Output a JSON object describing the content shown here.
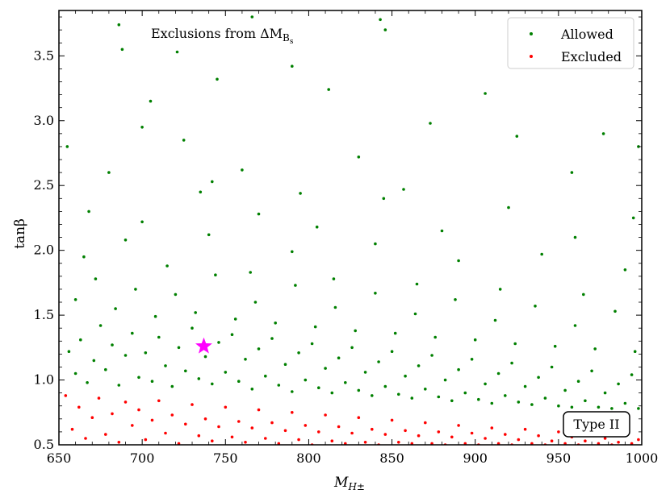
{
  "chart_data": {
    "type": "scatter",
    "title": "Exclusions from ΔM",
    "title_sub": "B",
    "title_subsub": "s",
    "xlabel": "M",
    "xlabel_sub": "H±",
    "ylabel": "tanβ",
    "xlim": [
      650,
      1000
    ],
    "ylim": [
      0.5,
      3.85
    ],
    "x_ticks": [
      650,
      700,
      750,
      800,
      850,
      900,
      950,
      1000
    ],
    "x_tick_labels": [
      "650",
      "700",
      "750",
      "800",
      "850",
      "900",
      "950",
      "1000"
    ],
    "y_ticks": [
      0.5,
      1.0,
      1.5,
      2.0,
      2.5,
      3.0,
      3.5
    ],
    "y_tick_labels": [
      "0.5",
      "1.0",
      "1.5",
      "2.0",
      "2.5",
      "3.0",
      "3.5"
    ],
    "grid": false,
    "legend_position": "top-right",
    "annotation_box": "Type II",
    "series": [
      {
        "name": "Allowed",
        "color": "#008000",
        "points": [
          [
            656,
            1.22
          ],
          [
            660,
            1.05
          ],
          [
            663,
            1.31
          ],
          [
            667,
            0.98
          ],
          [
            671,
            1.15
          ],
          [
            675,
            1.42
          ],
          [
            678,
            1.08
          ],
          [
            682,
            1.27
          ],
          [
            686,
            0.96
          ],
          [
            690,
            1.19
          ],
          [
            694,
            1.36
          ],
          [
            698,
            1.02
          ],
          [
            702,
            1.21
          ],
          [
            706,
            0.99
          ],
          [
            710,
            1.33
          ],
          [
            714,
            1.11
          ],
          [
            718,
            0.95
          ],
          [
            722,
            1.25
          ],
          [
            726,
            1.07
          ],
          [
            730,
            1.4
          ],
          [
            734,
            1.01
          ],
          [
            738,
            1.18
          ],
          [
            742,
            0.97
          ],
          [
            746,
            1.29
          ],
          [
            750,
            1.06
          ],
          [
            754,
            1.35
          ],
          [
            758,
            0.99
          ],
          [
            762,
            1.16
          ],
          [
            766,
            0.93
          ],
          [
            770,
            1.24
          ],
          [
            774,
            1.03
          ],
          [
            778,
            1.32
          ],
          [
            782,
            0.96
          ],
          [
            786,
            1.12
          ],
          [
            790,
            0.91
          ],
          [
            794,
            1.21
          ],
          [
            798,
            1.0
          ],
          [
            802,
            1.28
          ],
          [
            806,
            0.94
          ],
          [
            810,
            1.09
          ],
          [
            814,
            0.9
          ],
          [
            818,
            1.17
          ],
          [
            822,
            0.98
          ],
          [
            826,
            1.25
          ],
          [
            830,
            0.92
          ],
          [
            834,
            1.06
          ],
          [
            838,
            0.88
          ],
          [
            842,
            1.14
          ],
          [
            846,
            0.95
          ],
          [
            850,
            1.22
          ],
          [
            854,
            0.89
          ],
          [
            858,
            1.03
          ],
          [
            862,
            0.86
          ],
          [
            866,
            1.11
          ],
          [
            870,
            0.93
          ],
          [
            874,
            1.19
          ],
          [
            878,
            0.87
          ],
          [
            882,
            1.0
          ],
          [
            886,
            0.84
          ],
          [
            890,
            1.08
          ],
          [
            894,
            0.9
          ],
          [
            898,
            1.16
          ],
          [
            902,
            0.85
          ],
          [
            906,
            0.97
          ],
          [
            910,
            0.82
          ],
          [
            914,
            1.05
          ],
          [
            918,
            0.88
          ],
          [
            922,
            1.13
          ],
          [
            926,
            0.83
          ],
          [
            930,
            0.95
          ],
          [
            934,
            0.81
          ],
          [
            938,
            1.02
          ],
          [
            942,
            0.86
          ],
          [
            946,
            1.1
          ],
          [
            950,
            0.8
          ],
          [
            954,
            0.92
          ],
          [
            958,
            0.79
          ],
          [
            962,
            0.99
          ],
          [
            966,
            0.84
          ],
          [
            970,
            1.07
          ],
          [
            974,
            0.79
          ],
          [
            978,
            0.9
          ],
          [
            982,
            0.78
          ],
          [
            986,
            0.97
          ],
          [
            990,
            0.82
          ],
          [
            994,
            1.04
          ],
          [
            998,
            0.78
          ],
          [
            660,
            1.62
          ],
          [
            672,
            1.78
          ],
          [
            684,
            1.55
          ],
          [
            696,
            1.7
          ],
          [
            708,
            1.49
          ],
          [
            720,
            1.66
          ],
          [
            732,
            1.52
          ],
          [
            744,
            1.81
          ],
          [
            756,
            1.47
          ],
          [
            768,
            1.6
          ],
          [
            780,
            1.44
          ],
          [
            792,
            1.73
          ],
          [
            804,
            1.41
          ],
          [
            816,
            1.56
          ],
          [
            828,
            1.38
          ],
          [
            840,
            1.67
          ],
          [
            852,
            1.36
          ],
          [
            864,
            1.51
          ],
          [
            876,
            1.33
          ],
          [
            888,
            1.62
          ],
          [
            900,
            1.31
          ],
          [
            912,
            1.46
          ],
          [
            924,
            1.28
          ],
          [
            936,
            1.57
          ],
          [
            948,
            1.26
          ],
          [
            960,
            1.42
          ],
          [
            972,
            1.24
          ],
          [
            984,
            1.53
          ],
          [
            996,
            1.22
          ],
          [
            665,
            1.95
          ],
          [
            690,
            2.08
          ],
          [
            715,
            1.88
          ],
          [
            740,
            2.12
          ],
          [
            765,
            1.83
          ],
          [
            790,
            1.99
          ],
          [
            815,
            1.78
          ],
          [
            840,
            2.05
          ],
          [
            865,
            1.74
          ],
          [
            890,
            1.92
          ],
          [
            915,
            1.7
          ],
          [
            940,
            1.97
          ],
          [
            965,
            1.66
          ],
          [
            990,
            1.85
          ],
          [
            668,
            2.3
          ],
          [
            700,
            2.22
          ],
          [
            735,
            2.45
          ],
          [
            770,
            2.28
          ],
          [
            805,
            2.18
          ],
          [
            845,
            2.4
          ],
          [
            880,
            2.15
          ],
          [
            920,
            2.33
          ],
          [
            960,
            2.1
          ],
          [
            995,
            2.25
          ],
          [
            655,
            2.8
          ],
          [
            686,
            3.74
          ],
          [
            688,
            3.55
          ],
          [
            705,
            3.15
          ],
          [
            721,
            3.53
          ],
          [
            745,
            3.32
          ],
          [
            766,
            3.8
          ],
          [
            790,
            3.42
          ],
          [
            812,
            3.24
          ],
          [
            843,
            3.78
          ],
          [
            846,
            3.7
          ],
          [
            873,
            2.98
          ],
          [
            906,
            3.21
          ],
          [
            925,
            2.88
          ],
          [
            958,
            2.6
          ],
          [
            977,
            2.9
          ],
          [
            998,
            2.8
          ],
          [
            700,
            2.95
          ],
          [
            760,
            2.62
          ],
          [
            830,
            2.72
          ],
          [
            857,
            2.47
          ],
          [
            742,
            2.53
          ],
          [
            795,
            2.44
          ],
          [
            680,
            2.6
          ],
          [
            725,
            2.85
          ]
        ]
      },
      {
        "name": "Excluded",
        "color": "#ff0000",
        "points": [
          [
            654,
            0.88
          ],
          [
            658,
            0.62
          ],
          [
            662,
            0.79
          ],
          [
            666,
            0.55
          ],
          [
            670,
            0.71
          ],
          [
            674,
            0.86
          ],
          [
            678,
            0.58
          ],
          [
            682,
            0.74
          ],
          [
            686,
            0.52
          ],
          [
            690,
            0.83
          ],
          [
            694,
            0.65
          ],
          [
            698,
            0.77
          ],
          [
            702,
            0.54
          ],
          [
            706,
            0.69
          ],
          [
            710,
            0.84
          ],
          [
            714,
            0.59
          ],
          [
            718,
            0.73
          ],
          [
            722,
            0.51
          ],
          [
            726,
            0.66
          ],
          [
            730,
            0.81
          ],
          [
            734,
            0.57
          ],
          [
            738,
            0.7
          ],
          [
            742,
            0.53
          ],
          [
            746,
            0.64
          ],
          [
            750,
            0.79
          ],
          [
            754,
            0.56
          ],
          [
            758,
            0.68
          ],
          [
            762,
            0.52
          ],
          [
            766,
            0.63
          ],
          [
            770,
            0.77
          ],
          [
            774,
            0.55
          ],
          [
            778,
            0.67
          ],
          [
            782,
            0.51
          ],
          [
            786,
            0.61
          ],
          [
            790,
            0.75
          ],
          [
            794,
            0.54
          ],
          [
            798,
            0.65
          ],
          [
            802,
            0.5
          ],
          [
            806,
            0.6
          ],
          [
            810,
            0.73
          ],
          [
            814,
            0.53
          ],
          [
            818,
            0.64
          ],
          [
            822,
            0.51
          ],
          [
            826,
            0.59
          ],
          [
            830,
            0.71
          ],
          [
            834,
            0.52
          ],
          [
            838,
            0.62
          ],
          [
            842,
            0.5
          ],
          [
            846,
            0.58
          ],
          [
            850,
            0.69
          ],
          [
            854,
            0.52
          ],
          [
            858,
            0.61
          ],
          [
            862,
            0.51
          ],
          [
            866,
            0.57
          ],
          [
            870,
            0.67
          ],
          [
            874,
            0.51
          ],
          [
            878,
            0.6
          ],
          [
            882,
            0.5
          ],
          [
            886,
            0.56
          ],
          [
            890,
            0.65
          ],
          [
            894,
            0.51
          ],
          [
            898,
            0.59
          ],
          [
            902,
            0.5
          ],
          [
            906,
            0.55
          ],
          [
            910,
            0.63
          ],
          [
            914,
            0.51
          ],
          [
            918,
            0.58
          ],
          [
            922,
            0.5
          ],
          [
            926,
            0.54
          ],
          [
            930,
            0.62
          ],
          [
            934,
            0.51
          ],
          [
            938,
            0.57
          ],
          [
            942,
            0.5
          ],
          [
            946,
            0.53
          ],
          [
            950,
            0.6
          ],
          [
            954,
            0.51
          ],
          [
            958,
            0.56
          ],
          [
            962,
            0.5
          ],
          [
            966,
            0.53
          ],
          [
            970,
            0.59
          ],
          [
            974,
            0.51
          ],
          [
            978,
            0.55
          ],
          [
            982,
            0.5
          ],
          [
            986,
            0.52
          ],
          [
            990,
            0.58
          ],
          [
            994,
            0.51
          ],
          [
            998,
            0.54
          ]
        ]
      }
    ],
    "highlight_point": {
      "x": 737,
      "y": 1.26,
      "color": "#ff00ff",
      "marker": "star"
    }
  }
}
